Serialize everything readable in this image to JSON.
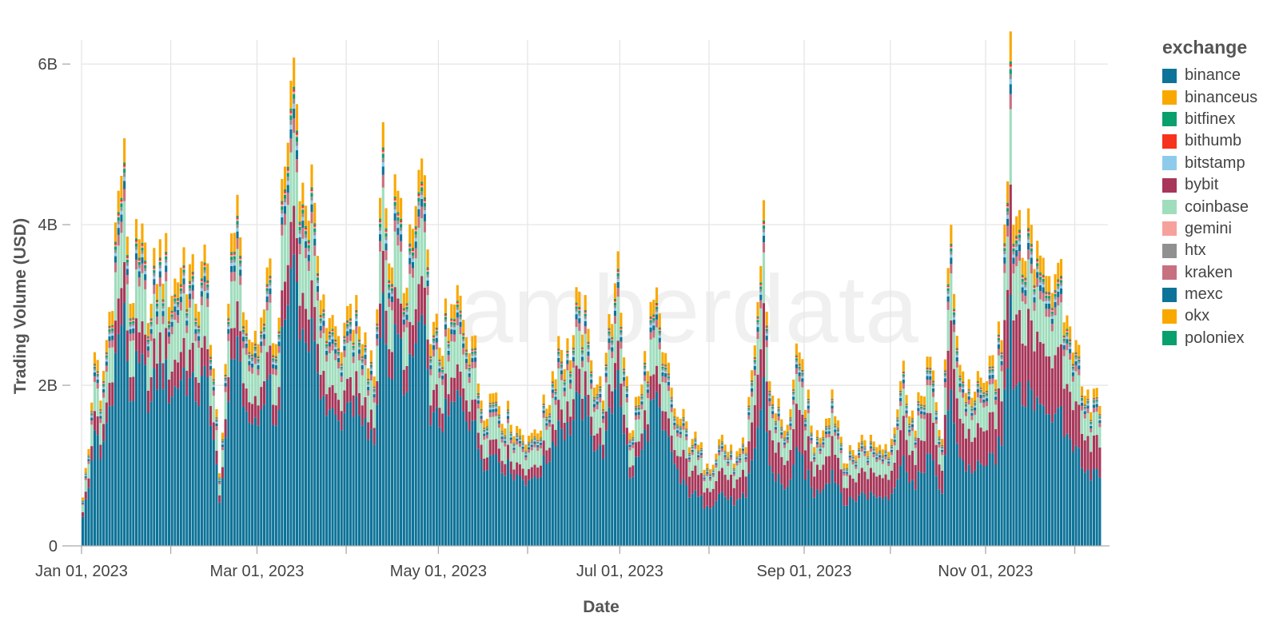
{
  "watermark": "amberdata",
  "chart_data": {
    "type": "bar",
    "stacked": true,
    "xlabel": "Date",
    "ylabel": "Trading Volume (USD)",
    "x_range": [
      "2023-01-01",
      "2023-12-10"
    ],
    "ylim": [
      0,
      6300000000
    ],
    "y_ticks": [
      {
        "value": 0,
        "label": "0"
      },
      {
        "value": 2000000000,
        "label": "2B"
      },
      {
        "value": 4000000000,
        "label": "4B"
      },
      {
        "value": 6000000000,
        "label": "6B"
      }
    ],
    "x_ticks": [
      {
        "date": "2023-01-01",
        "label": "Jan 01, 2023"
      },
      {
        "date": "2023-03-01",
        "label": "Mar 01, 2023"
      },
      {
        "date": "2023-05-01",
        "label": "May 01, 2023"
      },
      {
        "date": "2023-07-01",
        "label": "Jul 01, 2023"
      },
      {
        "date": "2023-09-01",
        "label": "Sep 01, 2023"
      },
      {
        "date": "2023-11-01",
        "label": "Nov 01, 2023"
      }
    ],
    "grid": true,
    "legend": {
      "title": "exchange",
      "position": "right",
      "entries": [
        {
          "name": "binance",
          "color": "#0e7398"
        },
        {
          "name": "binanceus",
          "color": "#f9a800"
        },
        {
          "name": "bitfinex",
          "color": "#0aa06e"
        },
        {
          "name": "bithumb",
          "color": "#f6331c"
        },
        {
          "name": "bitstamp",
          "color": "#8ecbea"
        },
        {
          "name": "bybit",
          "color": "#a73659"
        },
        {
          "name": "coinbase",
          "color": "#9fddbd"
        },
        {
          "name": "gemini",
          "color": "#f6a19c"
        },
        {
          "name": "htx",
          "color": "#909090"
        },
        {
          "name": "kraken",
          "color": "#c7707f"
        },
        {
          "name": "mexc",
          "color": "#0e7398"
        },
        {
          "name": "okx",
          "color": "#f9a800"
        },
        {
          "name": "poloniex",
          "color": "#0aa06e"
        }
      ]
    },
    "total_volume_anchors": [
      [
        "2023-01-01",
        0.6
      ],
      [
        "2023-01-03",
        1.2
      ],
      [
        "2023-01-05",
        2.4
      ],
      [
        "2023-01-07",
        1.8
      ],
      [
        "2023-01-10",
        2.9
      ],
      [
        "2023-01-13",
        4.4
      ],
      [
        "2023-01-15",
        5.05
      ],
      [
        "2023-01-17",
        3.0
      ],
      [
        "2023-01-20",
        3.8
      ],
      [
        "2023-01-24",
        3.0
      ],
      [
        "2023-01-27",
        3.8
      ],
      [
        "2023-01-31",
        3.1
      ],
      [
        "2023-02-04",
        3.7
      ],
      [
        "2023-02-08",
        3.0
      ],
      [
        "2023-02-12",
        3.5
      ],
      [
        "2023-02-16",
        0.9
      ],
      [
        "2023-02-19",
        3.0
      ],
      [
        "2023-02-22",
        4.35
      ],
      [
        "2023-02-25",
        2.8
      ],
      [
        "2023-03-01",
        2.5
      ],
      [
        "2023-03-04",
        3.45
      ],
      [
        "2023-03-07",
        2.5
      ],
      [
        "2023-03-10",
        4.7
      ],
      [
        "2023-03-13",
        6.05
      ],
      [
        "2023-03-16",
        4.5
      ],
      [
        "2023-03-20",
        4.25
      ],
      [
        "2023-03-24",
        2.7
      ],
      [
        "2023-03-28",
        2.6
      ],
      [
        "2023-04-01",
        3.0
      ],
      [
        "2023-04-05",
        2.5
      ],
      [
        "2023-04-09",
        2.1
      ],
      [
        "2023-04-12",
        5.25
      ],
      [
        "2023-04-14",
        3.5
      ],
      [
        "2023-04-17",
        4.4
      ],
      [
        "2023-04-20",
        3.2
      ],
      [
        "2023-04-25",
        4.8
      ],
      [
        "2023-04-28",
        2.5
      ],
      [
        "2023-05-04",
        2.7
      ],
      [
        "2023-05-08",
        3.1
      ],
      [
        "2023-05-12",
        2.6
      ],
      [
        "2023-05-15",
        1.8
      ],
      [
        "2023-05-20",
        1.9
      ],
      [
        "2023-05-25",
        1.5
      ],
      [
        "2023-06-01",
        1.4
      ],
      [
        "2023-06-06",
        1.7
      ],
      [
        "2023-06-10",
        2.6
      ],
      [
        "2023-06-14",
        2.3
      ],
      [
        "2023-06-17",
        3.15
      ],
      [
        "2023-06-21",
        2.3
      ],
      [
        "2023-06-25",
        1.8
      ],
      [
        "2023-06-30",
        3.65
      ],
      [
        "2023-07-04",
        1.4
      ],
      [
        "2023-07-08",
        2.0
      ],
      [
        "2023-07-12",
        3.05
      ],
      [
        "2023-07-15",
        2.4
      ],
      [
        "2023-07-20",
        1.6
      ],
      [
        "2023-07-25",
        1.3
      ],
      [
        "2023-07-30",
        1.0
      ],
      [
        "2023-08-04",
        1.35
      ],
      [
        "2023-08-08",
        1.0
      ],
      [
        "2023-08-12",
        1.2
      ],
      [
        "2023-08-17",
        3.4
      ],
      [
        "2023-08-18",
        4.2
      ],
      [
        "2023-08-20",
        2.0
      ],
      [
        "2023-08-25",
        1.4
      ],
      [
        "2023-08-30",
        2.35
      ],
      [
        "2023-09-04",
        1.2
      ],
      [
        "2023-09-10",
        1.9
      ],
      [
        "2023-09-15",
        1.0
      ],
      [
        "2023-09-20",
        1.35
      ],
      [
        "2023-09-25",
        1.2
      ],
      [
        "2023-09-30",
        1.3
      ],
      [
        "2023-10-04",
        2.25
      ],
      [
        "2023-10-08",
        1.4
      ],
      [
        "2023-10-12",
        2.3
      ],
      [
        "2023-10-17",
        1.3
      ],
      [
        "2023-10-20",
        3.9
      ],
      [
        "2023-10-23",
        2.2
      ],
      [
        "2023-10-27",
        1.8
      ],
      [
        "2023-11-01",
        2.0
      ],
      [
        "2023-11-06",
        2.5
      ],
      [
        "2023-11-09",
        6.25
      ],
      [
        "2023-11-10",
        3.9
      ],
      [
        "2023-11-13",
        3.5
      ],
      [
        "2023-11-16",
        3.9
      ],
      [
        "2023-11-20",
        3.5
      ],
      [
        "2023-11-24",
        3.3
      ],
      [
        "2023-11-28",
        2.8
      ],
      [
        "2023-12-01",
        2.5
      ],
      [
        "2023-12-05",
        1.9
      ],
      [
        "2023-12-09",
        1.7
      ]
    ]
  }
}
